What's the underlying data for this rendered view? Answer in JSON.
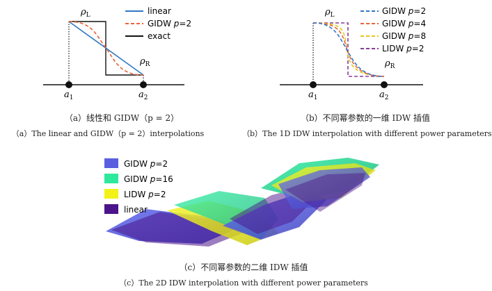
{
  "panel_a": {
    "rho_l": "ρ",
    "rho_l_sub": "L",
    "rho_r": "ρ",
    "rho_r_sub": "R",
    "a1": "a",
    "a1_sub": "1",
    "a2": "a",
    "a2_sub": "2",
    "legend": [
      {
        "label": "linear",
        "p": "",
        "color": "#2f78c4",
        "dash": "solid"
      },
      {
        "label": "GIDW ",
        "p": "=2",
        "color": "#e8643a",
        "dash": "dashed"
      },
      {
        "label": "exact",
        "p": "",
        "color": "#111111",
        "dash": "solid"
      }
    ],
    "p_symbol": "p",
    "caption_zh": "（a）线性和 GIDW（p = 2）",
    "caption_en": "（a）The linear and GIDW（p = 2）interpolations"
  },
  "panel_b": {
    "rho_l": "ρ",
    "rho_l_sub": "L",
    "rho_r": "ρ",
    "rho_r_sub": "R",
    "a1": "a",
    "a1_sub": "1",
    "a2": "a",
    "a2_sub": "2",
    "legend": [
      {
        "label": "GIDW ",
        "p": "=2",
        "color": "#2f78c4"
      },
      {
        "label": "GIDW ",
        "p": "=4",
        "color": "#e8643a"
      },
      {
        "label": "GIDW ",
        "p": "=8",
        "color": "#e6c619"
      },
      {
        "label": "LIDW ",
        "p": "=2",
        "color": "#8a3a9a"
      }
    ],
    "p_symbol": "p",
    "caption_zh": "（b）不同幂参数的一维 IDW 插值",
    "caption_en": "（b）The 1D IDW interpolation with different power parameters"
  },
  "panel_c": {
    "legend": [
      {
        "label": "GIDW ",
        "p": "=2",
        "color": "#5a5fe0"
      },
      {
        "label": "GIDW ",
        "p": "=16",
        "color": "#2ee89c"
      },
      {
        "label": "LIDW ",
        "p": "=2",
        "color": "#f2f218"
      },
      {
        "label": "linear",
        "p": "",
        "color": "#4b148a"
      }
    ],
    "p_symbol": "p",
    "caption_zh": "（c）不同幂参数的二维 IDW 插值",
    "caption_en": "（c）The 2D IDW interpolation with different power parameters"
  }
}
